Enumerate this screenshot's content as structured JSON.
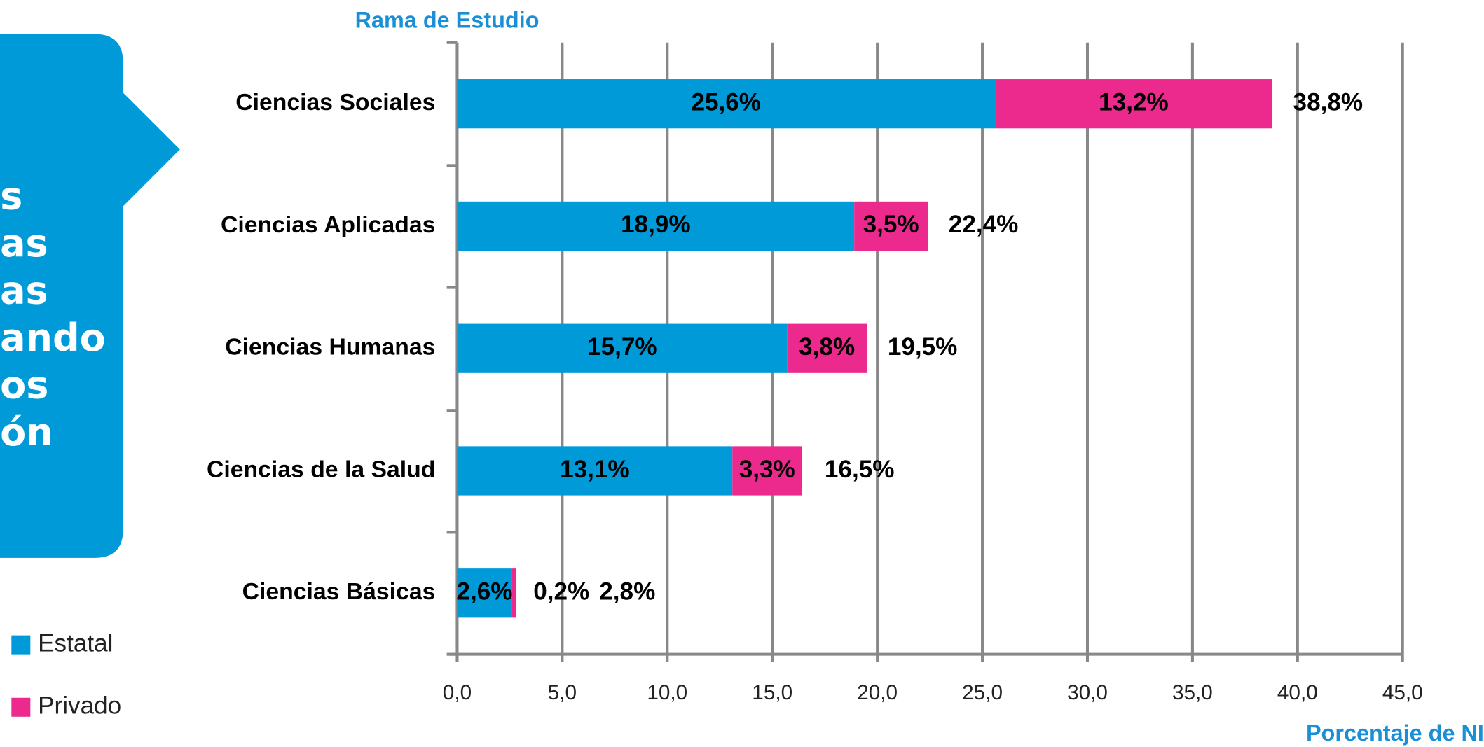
{
  "chart_data": {
    "type": "stacked_barh",
    "y_axis_title": "Rama de Estudio",
    "x_axis_title": "Porcentaje de NI",
    "categories": [
      "Ciencias Sociales",
      "Ciencias Aplicadas",
      "Ciencias Humanas",
      "Ciencias de la Salud",
      "Ciencias Básicas"
    ],
    "series": [
      {
        "name": "Estatal",
        "color": "#009ad9",
        "values": [
          25.6,
          18.9,
          15.7,
          13.1,
          2.6
        ],
        "value_labels": [
          "25,6%",
          "18,9%",
          "15,7%",
          "13,1%",
          "2,6%"
        ]
      },
      {
        "name": "Privado",
        "color": "#ec2a8e",
        "values": [
          13.2,
          3.5,
          3.8,
          3.3,
          0.2
        ],
        "value_labels": [
          "13,2%",
          "3,5%",
          "3,8%",
          "3,3%",
          "0,2%"
        ]
      }
    ],
    "totals": [
      38.8,
      22.4,
      19.5,
      16.5,
      2.8
    ],
    "total_labels": [
      "38,8%",
      "22,4%",
      "19,5%",
      "16,5%",
      "2,8%"
    ],
    "xlim": [
      0,
      45
    ],
    "xticks": [
      {
        "value": 0,
        "label": "0,0"
      },
      {
        "value": 5,
        "label": "5,0"
      },
      {
        "value": 10,
        "label": "10,0"
      },
      {
        "value": 15,
        "label": "15,0"
      },
      {
        "value": 20,
        "label": "20,0"
      },
      {
        "value": 25,
        "label": "25,0"
      },
      {
        "value": 30,
        "label": "30,0"
      },
      {
        "value": 35,
        "label": "35,0"
      },
      {
        "value": 40,
        "label": "40,0"
      },
      {
        "value": 45,
        "label": "45,0"
      }
    ],
    "grid": true,
    "legend": "left"
  },
  "left_panel": {
    "lines": [
      "s",
      "as",
      "as",
      "ando",
      "os",
      "ón"
    ]
  }
}
